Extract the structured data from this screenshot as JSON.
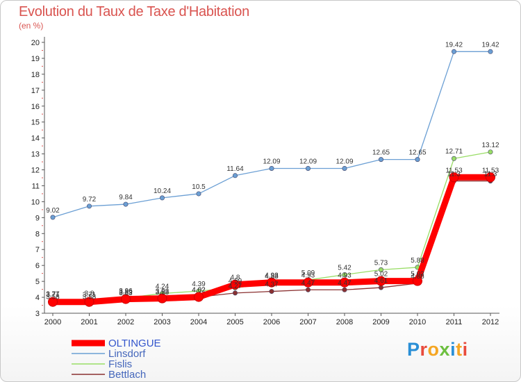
{
  "chart_data": {
    "type": "line",
    "title": "Evolution du Taux de Taxe d'Habitation",
    "subtitle": "(en %)",
    "x": [
      "2000",
      "2001",
      "2002",
      "2003",
      "2004",
      "2005",
      "2006",
      "2007",
      "2008",
      "2009",
      "2010",
      "2011",
      "2012"
    ],
    "ylim": [
      3,
      20
    ],
    "yticks": [
      3,
      4,
      5,
      6,
      7,
      8,
      9,
      10,
      11,
      12,
      13,
      14,
      15,
      16,
      17,
      18,
      19,
      20
    ],
    "grid": false,
    "legend_position": "bottom-left",
    "series": [
      {
        "name": "OLTINGUE",
        "color": "#ff0000",
        "values": [
          3.71,
          3.71,
          3.89,
          3.93,
          4.02,
          4.8,
          4.93,
          4.93,
          4.93,
          5.02,
          5.02,
          11.53,
          11.53
        ],
        "labels": [
          "3.71",
          "3.71",
          "3.89",
          "3.93",
          "4.02",
          "4.8",
          "4.93",
          "4.93",
          "4.93",
          "5.02",
          "5.02",
          "11.53",
          "11.53"
        ]
      },
      {
        "name": "Linsdorf",
        "color": "#6b9fd4",
        "values": [
          9.02,
          9.72,
          9.84,
          10.24,
          10.5,
          11.64,
          12.09,
          12.09,
          12.09,
          12.65,
          12.65,
          19.42,
          19.42
        ],
        "labels": [
          "9.02",
          "9.72",
          "9.84",
          "10.24",
          "10.5",
          "11.64",
          "12.09",
          "12.09",
          "12.09",
          "12.65",
          "12.65",
          "19.42",
          "19.42"
        ]
      },
      {
        "name": "Fislis",
        "color": "#99dd66",
        "values": [
          3.77,
          3.8,
          3.96,
          4.24,
          4.39,
          4.59,
          4.88,
          5.09,
          5.42,
          5.73,
          5.88,
          12.71,
          13.12
        ],
        "labels": [
          "3.77",
          "3.8",
          "3.96",
          "4.24",
          "4.39",
          "4.59",
          "4.88",
          "5.09",
          "5.42",
          "5.73",
          "5.88",
          "12.71",
          "13.12"
        ]
      },
      {
        "name": "Bettlach",
        "color": "#8a3030",
        "values": [
          3.58,
          3.58,
          3.83,
          3.88,
          4.02,
          4.27,
          4.37,
          4.47,
          4.47,
          4.61,
          4.88,
          11.3,
          11.3
        ],
        "labels": [
          "3.58",
          "3.58",
          "3.83",
          "3.88",
          "4.02",
          "4.27",
          "4.37",
          "4.47",
          "4.47",
          "4.61",
          "4.88",
          "11.3",
          "11.3"
        ]
      }
    ]
  },
  "logo": {
    "text": "Proxiti"
  }
}
